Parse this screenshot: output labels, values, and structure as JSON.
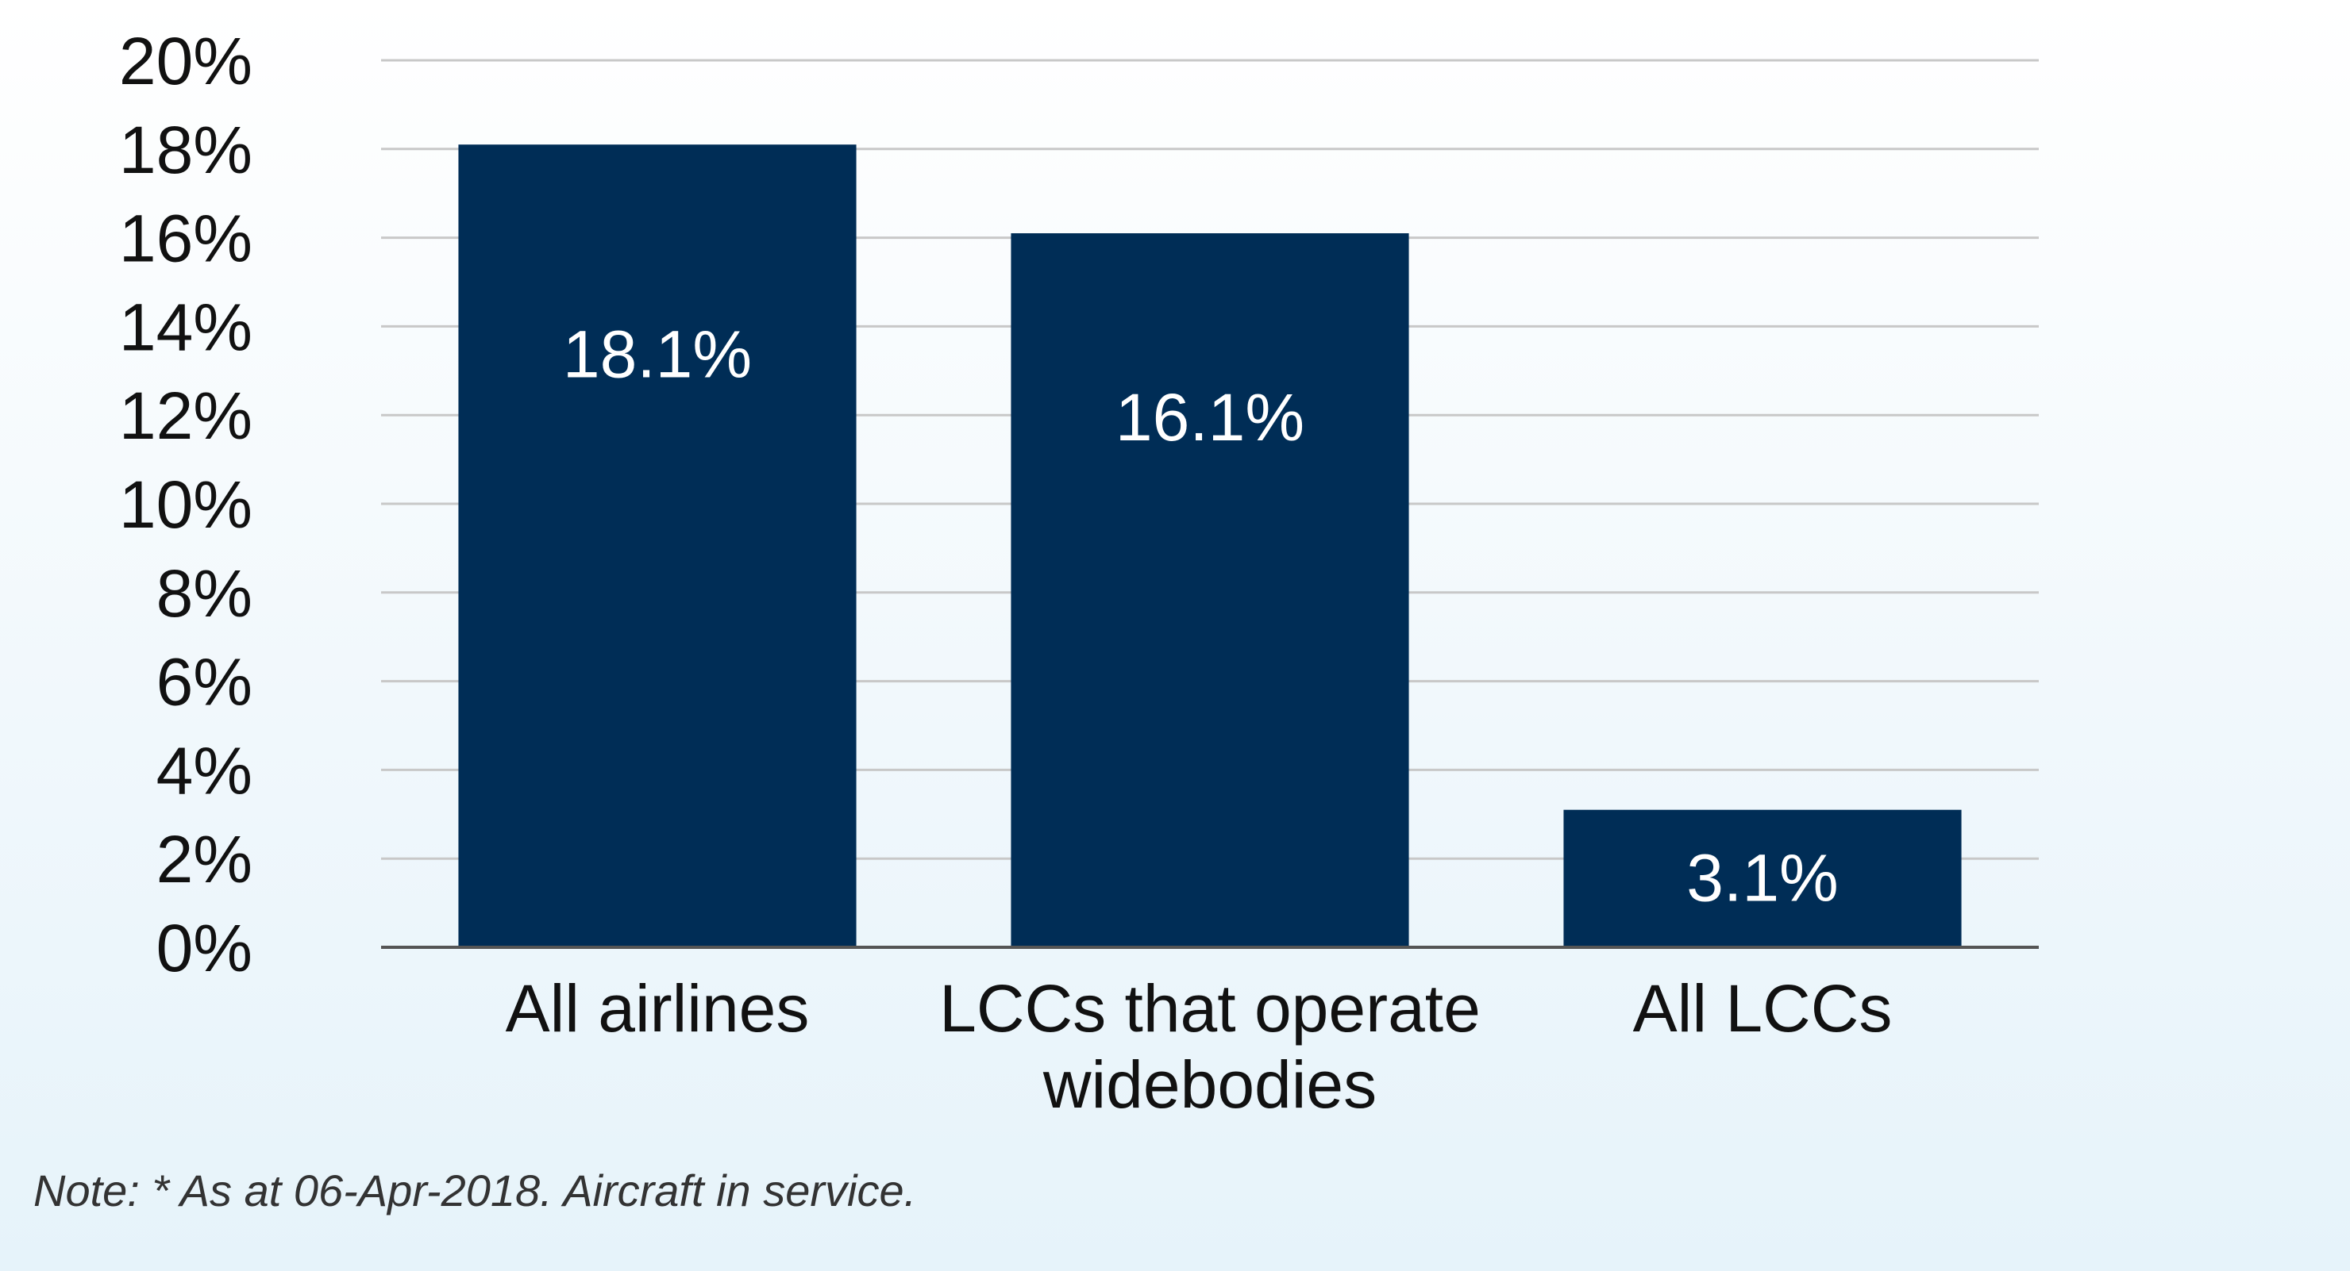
{
  "chart_data": {
    "type": "bar",
    "title": "",
    "xlabel": "",
    "ylabel": "",
    "categories": [
      [
        "All airlines"
      ],
      [
        "LCCs that operate",
        "widebodies"
      ],
      [
        "All LCCs"
      ]
    ],
    "values": [
      18.1,
      16.1,
      3.1
    ],
    "value_labels": [
      "18.1%",
      "16.1%",
      "3.1%"
    ],
    "ylim": [
      0,
      20
    ],
    "yticks": [
      0,
      2,
      4,
      6,
      8,
      10,
      12,
      14,
      16,
      18,
      20
    ],
    "ytick_labels": [
      "0%",
      "2%",
      "4%",
      "6%",
      "8%",
      "10%",
      "12%",
      "14%",
      "16%",
      "18%",
      "20%"
    ],
    "grid": true,
    "legend": "none",
    "bar_color": "#002d56",
    "grid_color": "#c8c8c8",
    "label_color": "#ffffff"
  },
  "note": "Note: * As at 06-Apr-2018. Aircraft in service."
}
